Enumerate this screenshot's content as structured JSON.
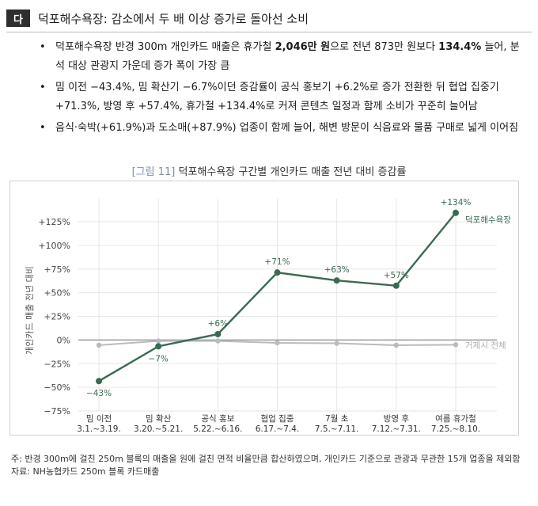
{
  "section": {
    "badge": "다",
    "title": "덕포해수욕장: 감소에서 두 배 이상 증가로 돌아선 소비"
  },
  "bullets": [
    {
      "dot": "•",
      "segments": [
        {
          "text": "덕포해수욕장 반경 300m 개인카드 매출은 휴가철 ",
          "bold": false
        },
        {
          "text": "2,046만 원",
          "bold": true
        },
        {
          "text": "으로 전년 873만 원보다 ",
          "bold": false
        },
        {
          "text": "134.4%",
          "bold": true
        },
        {
          "text": " 늘어, 분석 대상 관광지 가운데 증가 폭이 가장 큼",
          "bold": false
        }
      ]
    },
    {
      "dot": "•",
      "segments": [
        {
          "text": "밈 이전 −43.4%, 밈 확산기 −6.7%이던 증감률이 공식 홍보기 +6.2%로 증가 전환한 뒤 협업 집중기 +71.3%, 방영 후 +57.4%, 휴가철 +134.4%로 커져 콘텐츠 일정과 함께 소비가 꾸준히 늘어남",
          "bold": false
        }
      ]
    },
    {
      "dot": "•",
      "segments": [
        {
          "text": "음식·숙박(+61.9%)과 도소매(+87.9%) 업종이 함께 늘어, 해변 방문이 식음료와 물품 구매로 넓게 이어짐",
          "bold": false
        }
      ]
    }
  ],
  "figure": {
    "number": "[그림 11]",
    "title": "덕포해수욕장 구간별 개인카드 매출 전년 대비 증감률"
  },
  "colors": {
    "main_series": "#3a6b52",
    "reference_series": "#b8bcc0",
    "zero_line": "#9a9a9a",
    "grid": "#e6e6e6"
  },
  "chart_data": {
    "type": "line",
    "ylabel": "개인카드 매출 전년 대비",
    "xlabel": "",
    "ylim": [
      -75,
      135
    ],
    "yticks": [
      -75,
      -50,
      -25,
      0,
      25,
      50,
      75,
      100,
      125
    ],
    "ytick_labels": [
      "−75%",
      "−50%",
      "−25%",
      "0%",
      "+25%",
      "+50%",
      "+75%",
      "+100%",
      "+125%"
    ],
    "grid": true,
    "categories": [
      {
        "name": "밈 이전",
        "range": "3.1.~3.19."
      },
      {
        "name": "밈 확산",
        "range": "3.20.~5.21."
      },
      {
        "name": "공식 홍보",
        "range": "5.22.~6.16."
      },
      {
        "name": "협업 집중",
        "range": "6.17.~7.4."
      },
      {
        "name": "7월 초",
        "range": "7.5.~7.11."
      },
      {
        "name": "방영 후",
        "range": "7.12.~7.31."
      },
      {
        "name": "여름 휴가철",
        "range": "7.25.~8.10."
      }
    ],
    "series": [
      {
        "name": "덕포해수욕장",
        "values": [
          -43.4,
          -6.7,
          6.2,
          71.3,
          62.9,
          57.4,
          134.4
        ],
        "labels": [
          "−43%",
          "−7%",
          "+6%",
          "+71%",
          "+63%",
          "+57%",
          "+134%"
        ],
        "label_position": [
          "below",
          "below",
          "above",
          "above",
          "above",
          "above",
          "above"
        ]
      },
      {
        "name": "거제시 전체",
        "values": [
          -5.5,
          -1.0,
          -1.0,
          -3.0,
          -3.5,
          -5.5,
          -5.0
        ]
      }
    ]
  },
  "note": {
    "line1": "주: 반경 300m에 걸친 250m 블록의 매출을 원에 걸친 면적 비율만큼 합산하였으며, 개인카드 기준으로 관광과 무관한 15개 업종을 제외함",
    "line2": "자료: NH농협카드 250m 블록 카드매출"
  }
}
